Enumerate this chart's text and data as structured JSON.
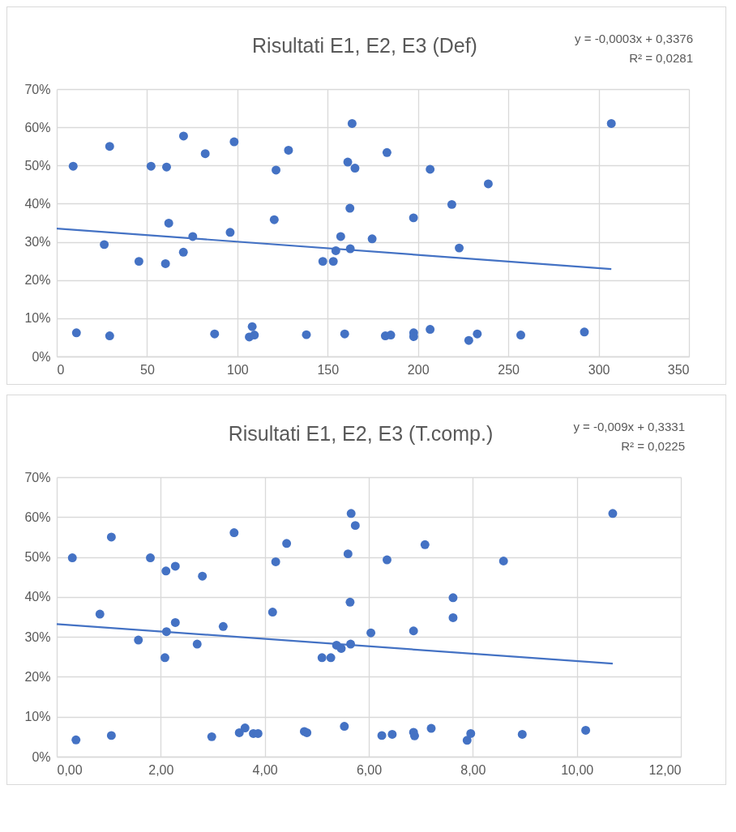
{
  "chart_data": [
    {
      "type": "scatter",
      "title": "Risultati E1, E2, E3 (Def)",
      "annotations": [
        "y = -0,0003x + 0,3376",
        "R² = 0,0281"
      ],
      "grid": true,
      "xlim": [
        0,
        350
      ],
      "xticks": [
        0,
        50,
        100,
        150,
        200,
        250,
        300,
        350
      ],
      "ylim": [
        0,
        0.7
      ],
      "yticks": [
        {
          "value": 0,
          "label": "0%"
        },
        {
          "value": 0.1,
          "label": "10%"
        },
        {
          "value": 0.2,
          "label": "20%"
        },
        {
          "value": 0.3,
          "label": "30%"
        },
        {
          "value": 0.4,
          "label": "40%"
        },
        {
          "value": 0.5,
          "label": "50%"
        },
        {
          "value": 0.6,
          "label": "60%"
        },
        {
          "value": 0.7,
          "label": "70%"
        }
      ],
      "series": [
        {
          "marker": "circle",
          "color": "#4472c4",
          "x": [
            9.1,
            10.9,
            29.3,
            26.3,
            29.3,
            45.5,
            52.2,
            60.8,
            62.0,
            60.2,
            70.1,
            70.2,
            75.3,
            82.2,
            87.4,
            96.0,
            98.2,
            106.6,
            108.2,
            109.4,
            120.4,
            121.4,
            128.3,
            138.2,
            147.3,
            153.1,
            154.5,
            157.2,
            159.4,
            161.1,
            162.3,
            162.5,
            163.5,
            165.1,
            174.6,
            181.9,
            182.8,
            184.9,
            197.5,
            197.6,
            197.6,
            206.7,
            206.7,
            218.7,
            222.8,
            228.1,
            232.8,
            238.9,
            256.9,
            292.1,
            307.0
          ],
          "values": [
            0.498,
            0.062,
            0.55,
            0.293,
            0.054,
            0.249,
            0.498,
            0.496,
            0.349,
            0.243,
            0.273,
            0.577,
            0.314,
            0.531,
            0.059,
            0.325,
            0.562,
            0.051,
            0.078,
            0.056,
            0.358,
            0.488,
            0.54,
            0.057,
            0.249,
            0.249,
            0.277,
            0.314,
            0.059,
            0.509,
            0.388,
            0.282,
            0.61,
            0.493,
            0.308,
            0.054,
            0.534,
            0.056,
            0.363,
            0.062,
            0.052,
            0.49,
            0.071,
            0.398,
            0.284,
            0.042,
            0.059,
            0.452,
            0.056,
            0.064,
            0.61
          ]
        },
        {
          "type": "line",
          "color": "#4472c4",
          "x": [
            0,
            307.0
          ],
          "values": [
            0.335,
            0.229
          ]
        }
      ]
    },
    {
      "type": "scatter",
      "title": "Risultati E1, E2, E3 (T.comp.)",
      "annotations": [
        "y = -0,009x + 0,3331",
        "R² = 0,0225"
      ],
      "grid": true,
      "xlim": [
        0,
        12
      ],
      "xticks": [
        {
          "value": 0,
          "label": "0,00"
        },
        {
          "value": 2,
          "label": "2,00"
        },
        {
          "value": 4,
          "label": "4,00"
        },
        {
          "value": 6,
          "label": "6,00"
        },
        {
          "value": 8,
          "label": "8,00"
        },
        {
          "value": 10,
          "label": "10,00"
        },
        {
          "value": 12,
          "label": "12,00"
        }
      ],
      "ylim": [
        0,
        0.7
      ],
      "yticks": [
        {
          "value": 0,
          "label": "0%"
        },
        {
          "value": 0.1,
          "label": "10%"
        },
        {
          "value": 0.2,
          "label": "20%"
        },
        {
          "value": 0.3,
          "label": "30%"
        },
        {
          "value": 0.4,
          "label": "40%"
        },
        {
          "value": 0.5,
          "label": "50%"
        },
        {
          "value": 0.6,
          "label": "60%"
        },
        {
          "value": 0.7,
          "label": "70%"
        }
      ],
      "series": [
        {
          "marker": "circle",
          "color": "#4472c4",
          "x": [
            0.3,
            0.37,
            0.83,
            1.05,
            1.05,
            1.57,
            1.8,
            2.08,
            2.1,
            2.11,
            2.28,
            2.28,
            2.7,
            2.8,
            2.98,
            3.2,
            3.41,
            3.51,
            3.62,
            3.78,
            3.87,
            4.15,
            4.21,
            4.42,
            4.76,
            4.81,
            5.1,
            5.27,
            5.38,
            5.47,
            5.53,
            5.6,
            5.64,
            5.65,
            5.66,
            5.74,
            6.04,
            6.25,
            6.35,
            6.45,
            6.86,
            6.86,
            6.88,
            7.08,
            7.2,
            7.62,
            7.62,
            7.89,
            7.96,
            8.59,
            8.95,
            10.17,
            10.69
          ],
          "values": [
            0.498,
            0.042,
            0.357,
            0.55,
            0.053,
            0.292,
            0.498,
            0.248,
            0.465,
            0.313,
            0.477,
            0.336,
            0.282,
            0.452,
            0.05,
            0.326,
            0.561,
            0.06,
            0.072,
            0.058,
            0.058,
            0.362,
            0.488,
            0.534,
            0.063,
            0.06,
            0.248,
            0.248,
            0.279,
            0.271,
            0.076,
            0.508,
            0.387,
            0.282,
            0.609,
            0.579,
            0.31,
            0.053,
            0.493,
            0.056,
            0.315,
            0.061,
            0.052,
            0.531,
            0.071,
            0.398,
            0.348,
            0.041,
            0.058,
            0.49,
            0.056,
            0.066,
            0.609
          ]
        },
        {
          "type": "line",
          "color": "#4472c4",
          "x": [
            0,
            10.69
          ],
          "values": [
            0.332,
            0.233
          ]
        }
      ]
    }
  ]
}
